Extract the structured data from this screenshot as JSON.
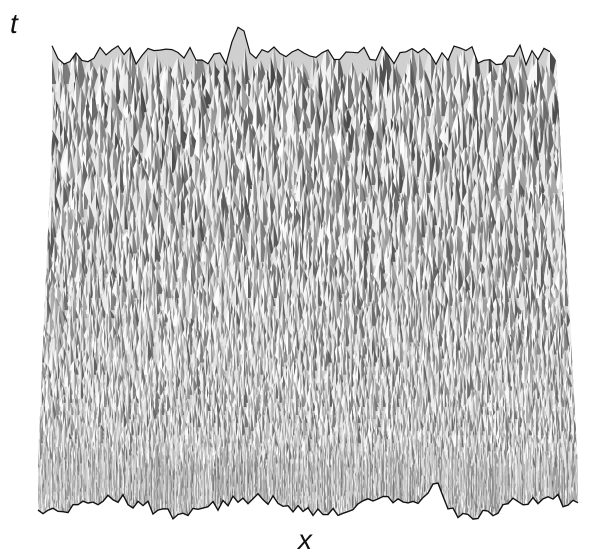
{
  "figure": {
    "axis_labels": {
      "vertical": "t",
      "horizontal": "x"
    },
    "colors": {
      "surface_light": "#f2f2f2",
      "surface_mid": "#b8b8b8",
      "surface_dark": "#4a4a4a",
      "outline": "#111111",
      "background": "#ffffff"
    }
  }
}
